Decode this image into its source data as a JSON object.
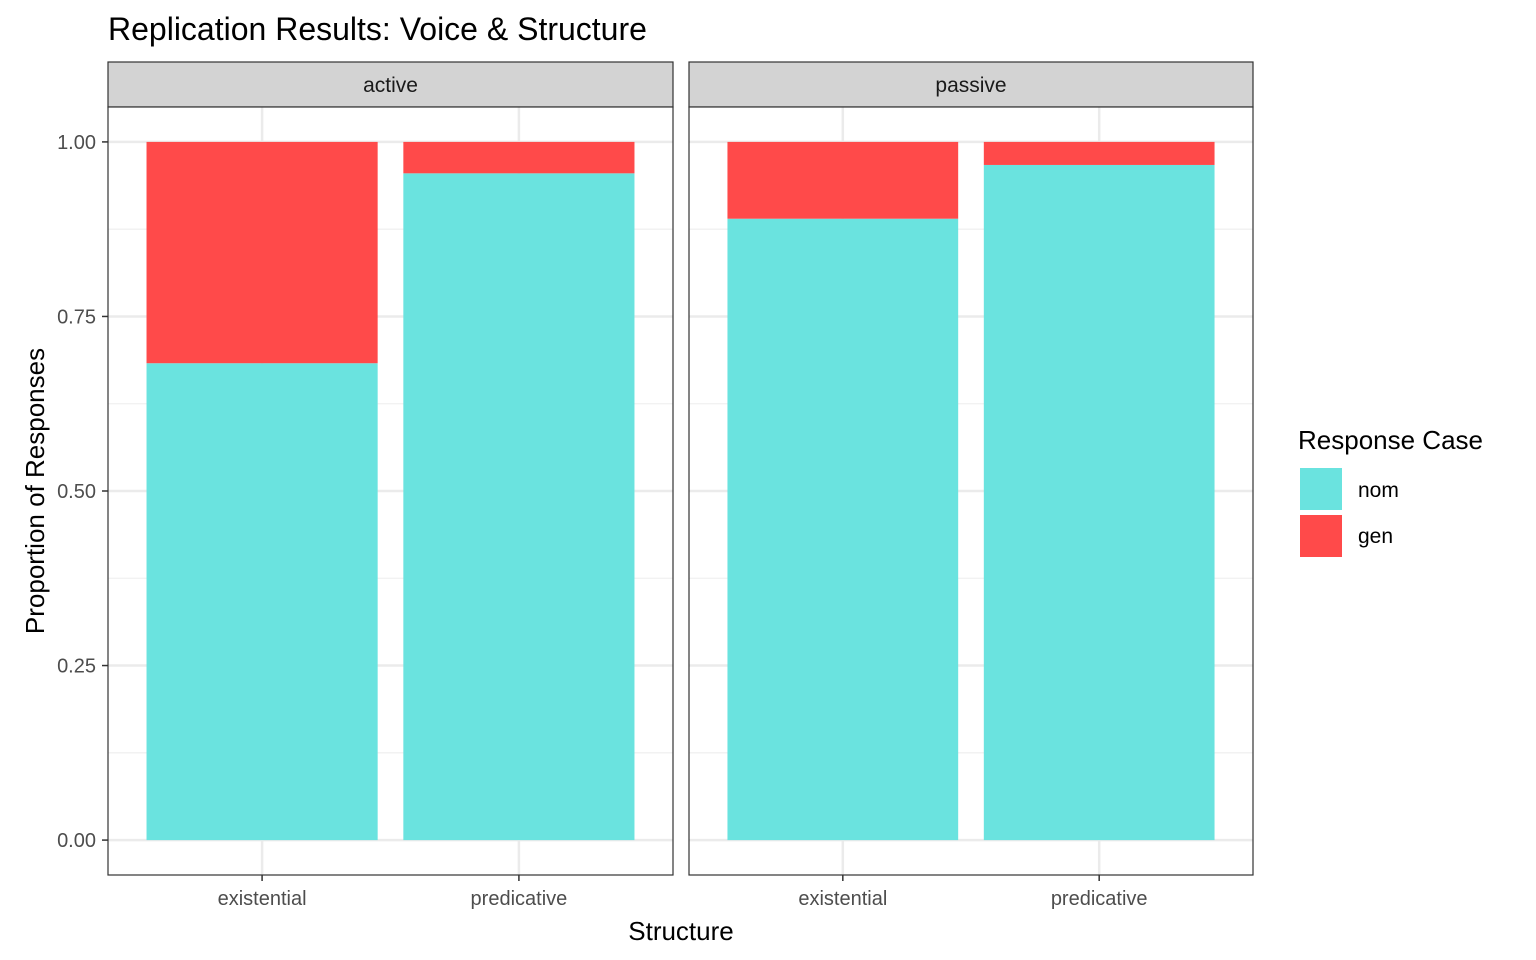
{
  "chart_data": {
    "type": "bar",
    "stacked": true,
    "title": "Replication Results: Voice & Structure",
    "xlabel": "Structure",
    "ylabel": "Proportion of Responses",
    "ylim": [
      0,
      1.05
    ],
    "y_ticks": [
      "0.00",
      "0.25",
      "0.50",
      "0.75",
      "1.00"
    ],
    "y_tick_values": [
      0,
      0.25,
      0.5,
      0.75,
      1.0
    ],
    "grid": true,
    "legend": {
      "title": "Response Case",
      "placement": "right",
      "items": [
        {
          "label": "nom",
          "color": "#6ae3df"
        },
        {
          "label": "gen",
          "color": "#ff4a4a"
        }
      ]
    },
    "categories": [
      "existential",
      "predicative"
    ],
    "panels": [
      {
        "strip": "active",
        "series": [
          {
            "name": "nom",
            "color": "#6ae3df",
            "values": [
              0.683,
              0.955
            ]
          },
          {
            "name": "gen",
            "color": "#ff4a4a",
            "values": [
              0.317,
              0.045
            ]
          }
        ]
      },
      {
        "strip": "passive",
        "series": [
          {
            "name": "nom",
            "color": "#6ae3df",
            "values": [
              0.89,
              0.967
            ]
          },
          {
            "name": "gen",
            "color": "#ff4a4a",
            "values": [
              0.11,
              0.033
            ]
          }
        ]
      }
    ]
  }
}
